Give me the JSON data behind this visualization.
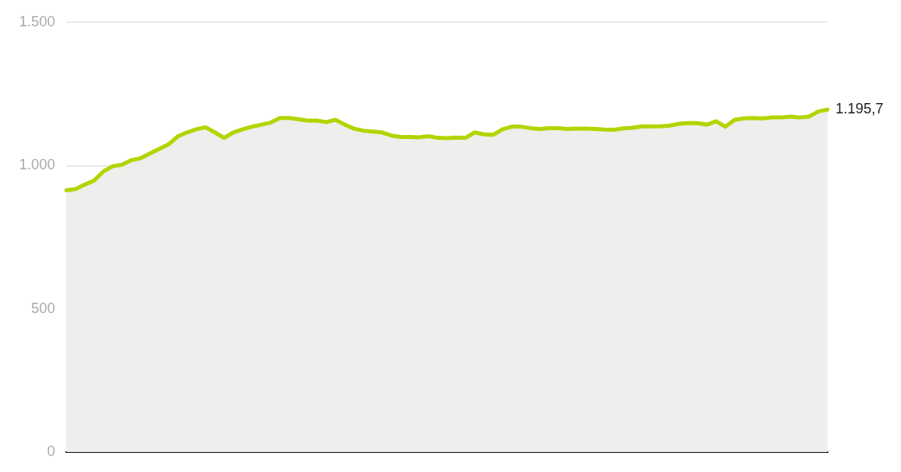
{
  "chart_data": {
    "type": "area",
    "categories": [
      null,
      null,
      null,
      null,
      null,
      null,
      null,
      null,
      null,
      null,
      null,
      null,
      null,
      null,
      null,
      null,
      null,
      null,
      null,
      null,
      null,
      null,
      null,
      null,
      null,
      null,
      null,
      null,
      null,
      null,
      null,
      null,
      null,
      null,
      null,
      null,
      null,
      null,
      null,
      null,
      null,
      null,
      null,
      null,
      null,
      null,
      null,
      null,
      null,
      null,
      null,
      null,
      null,
      null,
      null,
      null,
      null,
      null,
      null,
      null,
      null,
      null,
      null,
      null,
      null,
      null,
      null,
      null,
      null,
      null,
      null,
      null,
      null,
      null,
      null,
      null,
      null,
      null,
      null,
      null,
      null,
      null,
      null
    ],
    "series": [
      {
        "color": "#b5d300",
        "values": [
          914,
          918,
          934,
          948,
          980,
          998,
          1003,
          1019,
          1026,
          1042,
          1058,
          1074,
          1102,
          1116,
          1127,
          1134,
          1116,
          1097,
          1116,
          1127,
          1136,
          1143,
          1150,
          1166,
          1166,
          1162,
          1157,
          1157,
          1152,
          1160,
          1143,
          1129,
          1122,
          1119,
          1116,
          1105,
          1100,
          1100,
          1099,
          1103,
          1097,
          1096,
          1098,
          1097,
          1116,
          1109,
          1108,
          1127,
          1136,
          1136,
          1131,
          1128,
          1131,
          1131,
          1128,
          1129,
          1129,
          1128,
          1126,
          1125,
          1130,
          1132,
          1137,
          1137,
          1137,
          1140,
          1146,
          1149,
          1148,
          1143,
          1155,
          1136,
          1160,
          1165,
          1166,
          1165,
          1168,
          1168,
          1171,
          1168,
          1171,
          1189,
          1195.7
        ],
        "value_labels": [
          null,
          null,
          null,
          null,
          null,
          null,
          null,
          null,
          null,
          null,
          null,
          null,
          null,
          null,
          null,
          null,
          null,
          null,
          null,
          null,
          null,
          null,
          null,
          null,
          null,
          null,
          null,
          null,
          null,
          null,
          null,
          null,
          null,
          null,
          null,
          null,
          null,
          null,
          null,
          null,
          null,
          null,
          null,
          null,
          null,
          null,
          null,
          null,
          null,
          null,
          null,
          null,
          null,
          null,
          null,
          null,
          null,
          null,
          null,
          null,
          null,
          null,
          null,
          null,
          null,
          null,
          null,
          null,
          null,
          null,
          null,
          null,
          null,
          null,
          null,
          null,
          null,
          null,
          null,
          null,
          null,
          null,
          "1.195,7"
        ]
      }
    ],
    "ylim": [
      0,
      1500
    ],
    "yticks": [
      0,
      {
        "value": 500,
        "label": "500"
      },
      {
        "value": 1000,
        "label": "1.000"
      },
      {
        "value": 1500,
        "label": "1.500"
      }
    ],
    "grid": "y"
  }
}
